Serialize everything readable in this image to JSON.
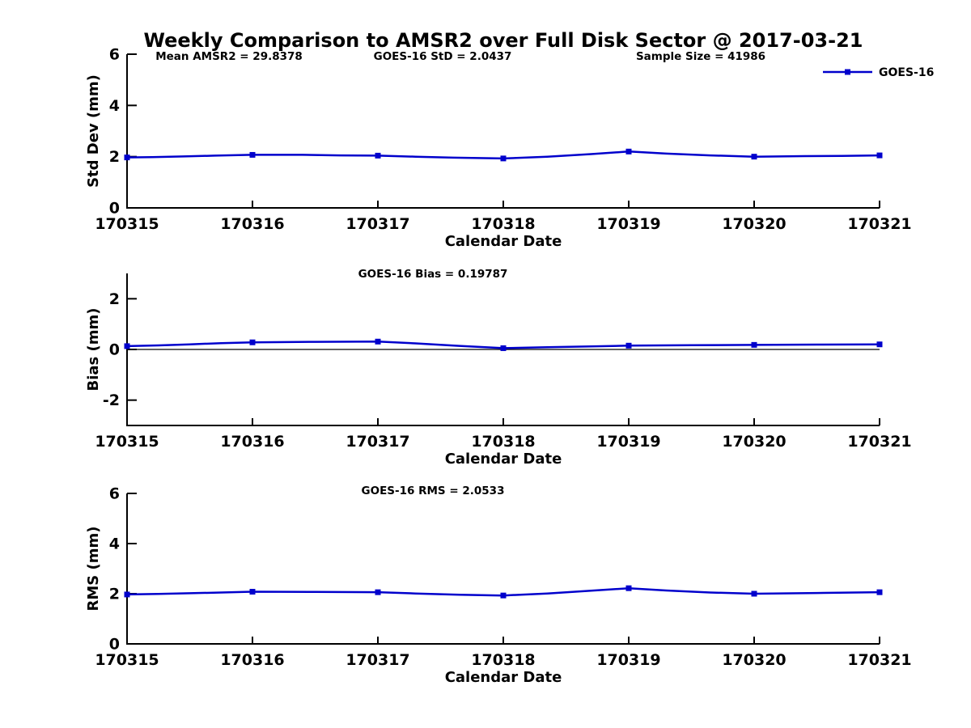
{
  "figure": {
    "title": "Weekly Comparison to AMSR2 over Full Disk Sector @ 2017-03-21",
    "background_color": "#ffffff",
    "text_color": "#000000",
    "line_color": "#0000CC"
  },
  "legend": {
    "label": "GOES-16",
    "position": "top-right"
  },
  "chart_data": [
    {
      "type": "line",
      "panel": "std-dev",
      "annotations": [
        "Mean AMSR2 = 29.8378",
        "GOES-16 StD = 2.0437",
        "Sample Size = 41986"
      ],
      "xlabel": "Calendar Date",
      "ylabel": "Std Dev (mm)",
      "x_tick_labels": [
        "170315",
        "170316",
        "170317",
        "170318",
        "170319",
        "170320",
        "170321"
      ],
      "ylim": [
        0,
        6
      ],
      "yticks": [
        0,
        2,
        4,
        6
      ],
      "grid": false,
      "zero_line": false,
      "series": [
        {
          "name": "GOES-16",
          "marker": "square",
          "x": [
            0,
            1,
            2,
            3,
            4,
            5,
            6
          ],
          "values": [
            1.97,
            2.07,
            2.04,
            1.93,
            2.2,
            2.0,
            2.05
          ],
          "fine_x": [
            0,
            0.2,
            0.45,
            0.7,
            1,
            1.4,
            1.7,
            2,
            2.3,
            2.6,
            3,
            3.35,
            3.7,
            4,
            4.3,
            4.65,
            5,
            5.4,
            5.7,
            6
          ],
          "fine_y": [
            1.97,
            1.98,
            2.01,
            2.04,
            2.07,
            2.07,
            2.05,
            2.04,
            2.0,
            1.96,
            1.93,
            2.0,
            2.1,
            2.2,
            2.12,
            2.05,
            2.0,
            2.02,
            2.03,
            2.05
          ]
        }
      ]
    },
    {
      "type": "line",
      "panel": "bias",
      "annotations": [
        "GOES-16 Bias  = 0.19787"
      ],
      "xlabel": "Calendar Date",
      "ylabel": "Bias (mm)",
      "x_tick_labels": [
        "170315",
        "170316",
        "170317",
        "170318",
        "170319",
        "170320",
        "170321"
      ],
      "ylim": [
        -3,
        3
      ],
      "yticks": [
        -2,
        0,
        2
      ],
      "grid": false,
      "zero_line": true,
      "series": [
        {
          "name": "GOES-16",
          "marker": "square",
          "x": [
            0,
            1,
            2,
            3,
            4,
            5,
            6
          ],
          "values": [
            0.13,
            0.28,
            0.31,
            0.05,
            0.15,
            0.18,
            0.2
          ],
          "fine_x": [
            0,
            0.25,
            0.5,
            0.75,
            1,
            1.5,
            2,
            2.3,
            2.65,
            3,
            3.35,
            3.7,
            4,
            4.5,
            5,
            5.5,
            6
          ],
          "fine_y": [
            0.13,
            0.16,
            0.2,
            0.25,
            0.28,
            0.3,
            0.31,
            0.24,
            0.14,
            0.05,
            0.09,
            0.12,
            0.15,
            0.17,
            0.18,
            0.19,
            0.2
          ]
        }
      ]
    },
    {
      "type": "line",
      "panel": "rms",
      "annotations": [
        "GOES-16 RMS = 2.0533"
      ],
      "xlabel": "Calendar Date",
      "ylabel": "RMS (mm)",
      "x_tick_labels": [
        "170315",
        "170316",
        "170317",
        "170318",
        "170319",
        "170320",
        "170321"
      ],
      "ylim": [
        0,
        6
      ],
      "yticks": [
        0,
        2,
        4,
        6
      ],
      "grid": false,
      "zero_line": false,
      "series": [
        {
          "name": "GOES-16",
          "marker": "square",
          "x": [
            0,
            1,
            2,
            3,
            4,
            5,
            6
          ],
          "values": [
            1.97,
            2.08,
            2.06,
            1.93,
            2.22,
            2.0,
            2.06
          ],
          "fine_x": [
            0,
            0.25,
            0.5,
            0.75,
            1,
            1.5,
            2,
            2.3,
            2.65,
            3,
            3.35,
            3.7,
            4,
            4.3,
            4.65,
            5,
            5.5,
            6
          ],
          "fine_y": [
            1.97,
            1.99,
            2.02,
            2.05,
            2.08,
            2.07,
            2.06,
            2.01,
            1.96,
            1.93,
            2.01,
            2.12,
            2.22,
            2.13,
            2.05,
            2.0,
            2.03,
            2.06
          ]
        }
      ]
    }
  ]
}
